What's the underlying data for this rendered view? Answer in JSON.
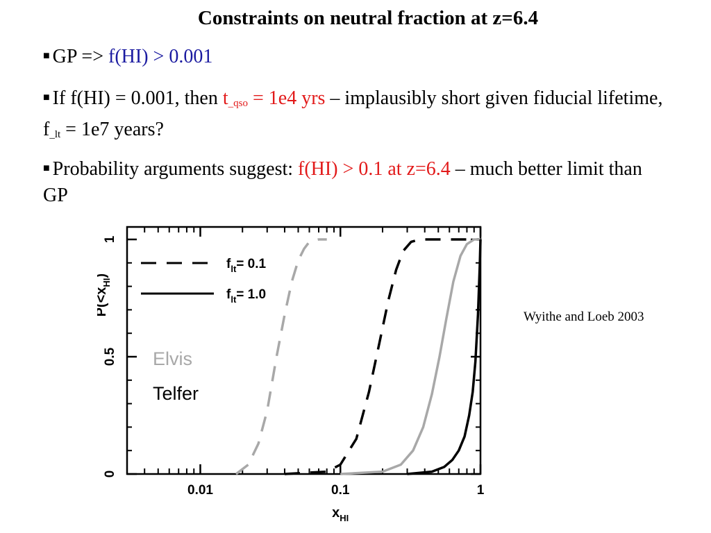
{
  "slide": {
    "title": "Constraints on neutral fraction at z=6.4",
    "bullet1": {
      "pre": "GP => ",
      "highlight": "f(HI) > 0.001"
    },
    "bullet2": {
      "pre": "If f(HI) = 0.001, then ",
      "t_main": "t",
      "t_sub": "_qso",
      "t_rest": " = 1e4 yrs",
      "mid": " – implausibly short given fiducial lifetime, f",
      "f_sub": "_lt",
      "end": " = 1e7 years?"
    },
    "bullet3": {
      "pre": "Probability arguments suggest: ",
      "highlight": "f(HI) > 0.1 at z=6.4",
      "post": " – much better limit than GP"
    },
    "citation": "Wyithe and Loeb 2003"
  },
  "colors": {
    "blue": "#1a1aa0",
    "red": "#e21a1a",
    "elvis": "#a8a8a8",
    "telfer": "#000000"
  },
  "chart_data": {
    "type": "line",
    "xscale": "log",
    "xlim": [
      0.003,
      1
    ],
    "ylim": [
      0,
      1
    ],
    "xticks": [
      {
        "value": 0.01,
        "label": "0.01"
      },
      {
        "value": 0.1,
        "label": "0.1"
      },
      {
        "value": 1,
        "label": "1"
      }
    ],
    "yticks": [
      {
        "value": 0,
        "label": "0"
      },
      {
        "value": 0.5,
        "label": "0.5"
      },
      {
        "value": 1,
        "label": "1"
      }
    ],
    "xlabel": {
      "main": "x",
      "sub": "HI"
    },
    "ylabel": {
      "main": "P(<x",
      "sub": "HI",
      "close": ")"
    },
    "legend": [
      {
        "label": "f",
        "sub": "lt",
        "value": "= 0.1",
        "style": "dashed"
      },
      {
        "label": "f",
        "sub": "lt",
        "value": "= 1.0",
        "style": "solid"
      }
    ],
    "annotations": [
      {
        "text": "Elvis",
        "color": "#a8a8a8"
      },
      {
        "text": "Telfer",
        "color": "#000000"
      }
    ],
    "series": [
      {
        "name": "Elvis",
        "lifetime": "0.1",
        "style": "dashed",
        "color": "#a8a8a8",
        "x": [
          0.018,
          0.022,
          0.026,
          0.03,
          0.035,
          0.04,
          0.045,
          0.05,
          0.055,
          0.06,
          0.07,
          0.08
        ],
        "y": [
          0,
          0.04,
          0.13,
          0.27,
          0.5,
          0.68,
          0.82,
          0.91,
          0.96,
          0.99,
          1,
          1
        ]
      },
      {
        "name": "Telfer",
        "lifetime": "0.1",
        "style": "dashed",
        "color": "#000000",
        "x": [
          0.04,
          0.08,
          0.1,
          0.13,
          0.16,
          0.19,
          0.22,
          0.25,
          0.28,
          0.32,
          0.37,
          0.5,
          1.0
        ],
        "y": [
          0,
          0.01,
          0.04,
          0.15,
          0.35,
          0.56,
          0.74,
          0.87,
          0.95,
          0.99,
          1,
          1,
          1
        ]
      },
      {
        "name": "Elvis",
        "lifetime": "1.0",
        "style": "solid",
        "color": "#a8a8a8",
        "x": [
          0.1,
          0.2,
          0.27,
          0.33,
          0.39,
          0.45,
          0.51,
          0.57,
          0.64,
          0.72,
          0.8,
          0.9,
          1.0
        ],
        "y": [
          0,
          0.01,
          0.04,
          0.1,
          0.2,
          0.34,
          0.5,
          0.66,
          0.82,
          0.93,
          0.98,
          1,
          1
        ]
      },
      {
        "name": "Telfer",
        "lifetime": "1.0",
        "style": "solid",
        "color": "#000000",
        "x": [
          0.3,
          0.45,
          0.55,
          0.63,
          0.7,
          0.77,
          0.83,
          0.88,
          0.92,
          0.96,
          0.99,
          1.0
        ],
        "y": [
          0,
          0.01,
          0.03,
          0.06,
          0.1,
          0.16,
          0.25,
          0.35,
          0.48,
          0.68,
          0.9,
          1.0
        ]
      }
    ]
  }
}
